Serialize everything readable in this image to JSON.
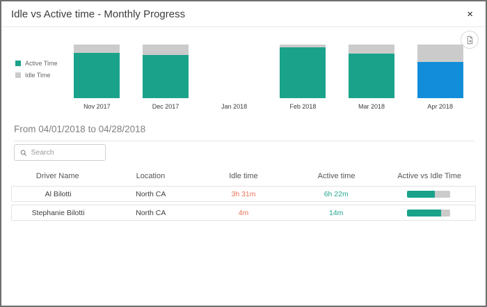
{
  "modal": {
    "title": "Idle vs Active time - Monthly Progress",
    "close_label": "×"
  },
  "legend": {
    "items": [
      {
        "label": "Active Time",
        "color": "#1aa28b"
      },
      {
        "label": "Idle Time",
        "color": "#cbcbcb"
      }
    ]
  },
  "chart_data": {
    "type": "bar",
    "stacked": true,
    "categories": [
      "Nov 2017",
      "Dec 2017",
      "Jan 2018",
      "Feb 2018",
      "Mar 2018",
      "Apr 2018"
    ],
    "series": [
      {
        "name": "Active Time",
        "values": [
          84,
          80,
          0,
          95,
          83,
          67
        ]
      },
      {
        "name": "Idle Time",
        "values": [
          16,
          20,
          0,
          5,
          17,
          33
        ]
      }
    ],
    "value_unit": "percent of bar height, estimated from pixels (no axis shown)",
    "legend_position": "left",
    "grid": false,
    "colors": {
      "active": "#1aa28b",
      "idle": "#cbcbcb",
      "selected_active": "#118dd9"
    },
    "highlight": {
      "category": "Apr 2018",
      "series": "Active Time",
      "color": "#118dd9"
    }
  },
  "period": {
    "heading": "From 04/01/2018 to 04/28/2018"
  },
  "search": {
    "placeholder": "Search"
  },
  "table": {
    "columns": [
      "Driver Name",
      "Location",
      "Idle time",
      "Active time",
      "Active vs Idle Time"
    ],
    "rows": [
      {
        "driver": "Al Bilotti",
        "location": "North CA",
        "idle": "3h 31m",
        "active": "6h 22m",
        "active_pct": 64
      },
      {
        "driver": "Stephanie Bilotti",
        "location": "North CA",
        "idle": "4m",
        "active": "14m",
        "active_pct": 78
      }
    ]
  },
  "colors": {
    "accent_teal": "#1aa28b",
    "selected_blue": "#118dd9",
    "idle_gray": "#cbcbcb",
    "idle_text_orange": "#e8735a",
    "active_text_teal": "#21a58c"
  }
}
